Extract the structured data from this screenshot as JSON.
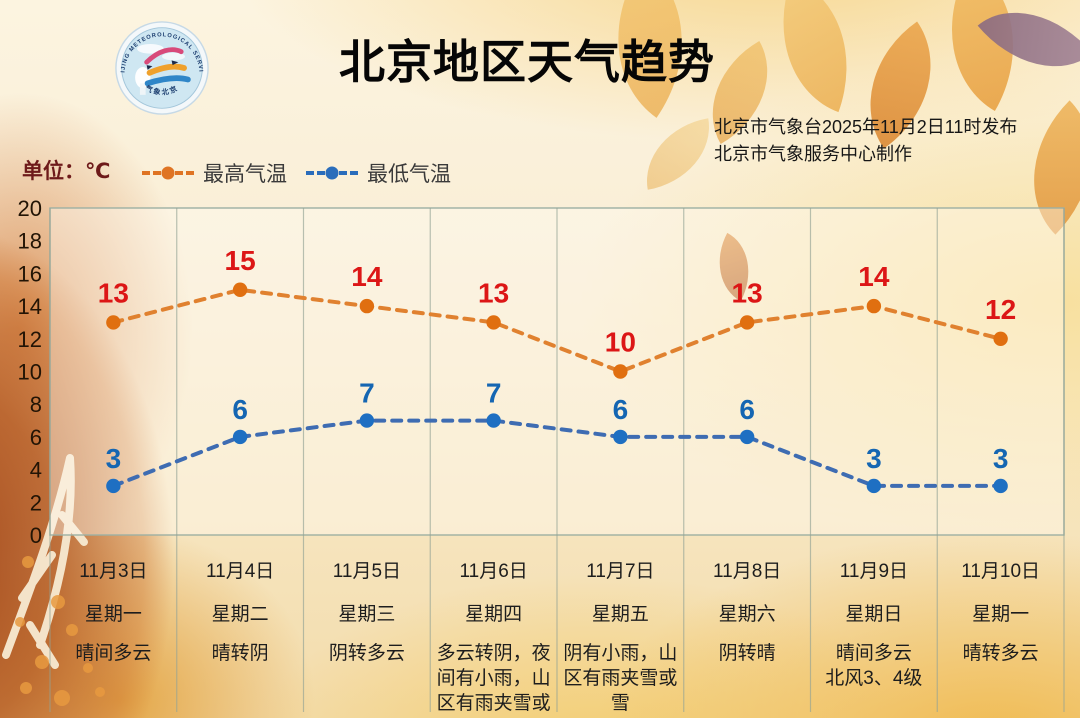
{
  "header": {
    "title": "北京地区天气趋势",
    "issued_line1": "北京市气象台2025年11月2日11时发布",
    "issued_line2": "北京市气象服务中心制作",
    "unit_label": "单位：℃"
  },
  "logo": {
    "arc_text": "BEIJING METEOROLOGICAL SERVICE",
    "bottom_text": "气象北京"
  },
  "legend": [
    {
      "label": "最高气温",
      "color": "#df7423"
    },
    {
      "label": "最低气温",
      "color": "#2a6dbb"
    }
  ],
  "chart_data": {
    "type": "line",
    "title": "北京地区天气趋势",
    "unit": "℃",
    "categories": [
      "11月3日",
      "11月4日",
      "11月5日",
      "11月6日",
      "11月7日",
      "11月8日",
      "11月9日",
      "11月10日"
    ],
    "weekdays": [
      "星期一",
      "星期二",
      "星期三",
      "星期四",
      "星期五",
      "星期六",
      "星期日",
      "星期一"
    ],
    "weather": [
      "晴间多云",
      "晴转阴",
      "阴转多云",
      "多云转阴，夜间有小雨，山区有雨夹雪或雪",
      "阴有小雨，山区有雨夹雪或雪",
      "阴转晴",
      "晴间多云\n北风3、4级",
      "晴转多云"
    ],
    "series": [
      {
        "name": "最高气温",
        "values": [
          13,
          15,
          14,
          13,
          10,
          13,
          14,
          12
        ],
        "line_color": "#e0812f",
        "marker_color": "#e06f10",
        "label_color": "#dc1616"
      },
      {
        "name": "最低气温",
        "values": [
          3,
          6,
          7,
          7,
          6,
          6,
          3,
          3
        ],
        "line_color": "#3e6cb2",
        "marker_color": "#1e6fc2",
        "label_color": "#1566b2"
      }
    ],
    "ylim": [
      0,
      20
    ],
    "yticks": [
      0,
      2,
      4,
      6,
      8,
      10,
      12,
      14,
      16,
      18,
      20
    ],
    "grid": "vertical",
    "legend_position": "top-left"
  }
}
